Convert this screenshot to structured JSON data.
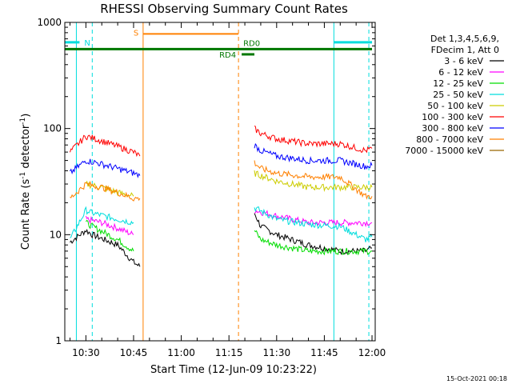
{
  "chart_data": {
    "type": "line",
    "title": "RHESSI Observing Summary Count Rates",
    "xlabel": "Start Time (12-Jun-09 10:23:22)",
    "ylabel_parts": [
      "Count Rate (s",
      "-1",
      " detector",
      "-1",
      ")"
    ],
    "yscale": "log",
    "ylim": [
      1,
      1000
    ],
    "y_ticks": [
      1,
      10,
      100,
      1000
    ],
    "y_tick_labels": [
      "1",
      "10",
      "100",
      "1000"
    ],
    "x_range_minutes": [
      "10:23:22",
      "12:01:00"
    ],
    "x_ticks": [
      "10:30",
      "10:45",
      "11:00",
      "11:15",
      "11:30",
      "11:45",
      "12:00"
    ],
    "x_tick_labels": [
      "10:30",
      "10:45",
      "11:00",
      "11:15",
      "11:30",
      "11:45",
      "12:00"
    ],
    "timestamp": "15-Oct-2021 00:18",
    "legend": {
      "header": [
        "Det 1,3,4,5,6,9,",
        "FDecim 1, Att 0"
      ],
      "placement": "right"
    },
    "series": [
      {
        "name": "3 - 6 keV",
        "color": "#000000",
        "x": [
          "10:25",
          "10:30",
          "10:32",
          "10:40",
          "10:45",
          "10:47",
          "11:23",
          "11:25",
          "11:30",
          "11:40",
          "11:45",
          "11:50",
          "11:52",
          "11:58",
          "12:00"
        ],
        "y": [
          8.5,
          11.0,
          10.0,
          8.0,
          5.5,
          5.0,
          16.0,
          12.0,
          10.0,
          8.0,
          7.5,
          7.0,
          7.0,
          7.0,
          7.5
        ]
      },
      {
        "name": "6 - 12 keV",
        "color": "#ff00ff",
        "x": [
          "10:30",
          "10:35",
          "10:40",
          "10:45",
          "11:23",
          "11:30",
          "11:40",
          "11:50",
          "12:00"
        ],
        "y": [
          14.0,
          13.0,
          11.5,
          10.0,
          17.0,
          15.0,
          13.0,
          13.0,
          13.0
        ]
      },
      {
        "name": "12 - 25 keV",
        "color": "#00dd00",
        "x": [
          "10:30",
          "10:32",
          "10:40",
          "10:45",
          "11:23",
          "11:25",
          "11:30",
          "11:40",
          "11:50",
          "12:00"
        ],
        "y": [
          13.0,
          12.0,
          9.0,
          7.0,
          11.0,
          9.0,
          8.0,
          7.0,
          7.0,
          7.0
        ]
      },
      {
        "name": "25 - 50 keV",
        "color": "#00dddd",
        "x": [
          "10:25",
          "10:30",
          "10:32",
          "10:40",
          "10:45",
          "11:23",
          "11:30",
          "11:40",
          "11:50",
          "11:58",
          "12:00"
        ],
        "y": [
          9.0,
          17.0,
          16.0,
          14.0,
          13.0,
          18.0,
          14.0,
          12.5,
          12.0,
          9.0,
          9.5
        ]
      },
      {
        "name": "50 - 100 keV",
        "color": "#cccc00",
        "x": [
          "10:30",
          "10:35",
          "10:40",
          "10:45",
          "11:23",
          "11:30",
          "11:40",
          "11:50",
          "12:00"
        ],
        "y": [
          30.0,
          28.0,
          25.0,
          23.0,
          38.0,
          32.0,
          28.0,
          28.0,
          28.0
        ]
      },
      {
        "name": "100 - 300 keV",
        "color": "#ff0000",
        "x": [
          "10:25",
          "10:30",
          "10:33",
          "10:40",
          "10:45",
          "10:47",
          "11:23",
          "11:25",
          "11:30",
          "11:40",
          "11:50",
          "11:58",
          "12:00"
        ],
        "y": [
          60.0,
          85.0,
          80.0,
          68.0,
          60.0,
          55.0,
          100.0,
          90.0,
          80.0,
          72.0,
          72.0,
          62.0,
          65.0
        ]
      },
      {
        "name": "300 - 800 keV",
        "color": "#0000ff",
        "x": [
          "10:25",
          "10:30",
          "10:33",
          "10:40",
          "10:45",
          "10:47",
          "11:23",
          "11:25",
          "11:30",
          "11:40",
          "11:50",
          "11:58",
          "12:00"
        ],
        "y": [
          38.0,
          50.0,
          48.0,
          42.0,
          38.0,
          36.0,
          70.0,
          62.0,
          55.0,
          50.0,
          50.0,
          44.0,
          45.0
        ]
      },
      {
        "name": "800 - 7000 keV",
        "color": "#ff8000",
        "x": [
          "10:25",
          "10:30",
          "10:35",
          "10:40",
          "10:45",
          "10:47",
          "11:23",
          "11:25",
          "11:30",
          "11:40",
          "11:50",
          "11:58",
          "12:00"
        ],
        "y": [
          22.0,
          30.0,
          28.0,
          25.0,
          22.0,
          22.0,
          48.0,
          42.0,
          38.0,
          35.0,
          35.0,
          23.0,
          23.0
        ]
      },
      {
        "name": "7000 - 15000 keV",
        "color": "#996600",
        "x": [],
        "y": []
      }
    ],
    "flags": [
      {
        "label": "N",
        "color": "#00dddd",
        "level": 650,
        "x_start": "10:23:22",
        "x_end": "10:28",
        "x_end2_start": "11:48",
        "x_end2": "12:00"
      },
      {
        "label": "S",
        "color": "#ff8000",
        "level": 780,
        "x_start": "10:48",
        "x_end": "11:18"
      },
      {
        "label": "RD0",
        "color": "#007700",
        "level": 560,
        "x_start": "11:18"
      },
      {
        "label": "RD4",
        "color": "#007700",
        "level": 500,
        "x_start": "11:19",
        "x_end": "11:23"
      }
    ],
    "vertical_lines": [
      {
        "x": "10:27",
        "color": "#00dddd",
        "style": "solid"
      },
      {
        "x": "10:32",
        "color": "#00dddd",
        "style": "dashed"
      },
      {
        "x": "10:48",
        "color": "#ff8000",
        "style": "solid"
      },
      {
        "x": "11:18",
        "color": "#ff8000",
        "style": "dashed"
      },
      {
        "x": "11:48",
        "color": "#00dddd",
        "style": "solid"
      },
      {
        "x": "11:59",
        "color": "#00dddd",
        "style": "dashed"
      }
    ]
  }
}
